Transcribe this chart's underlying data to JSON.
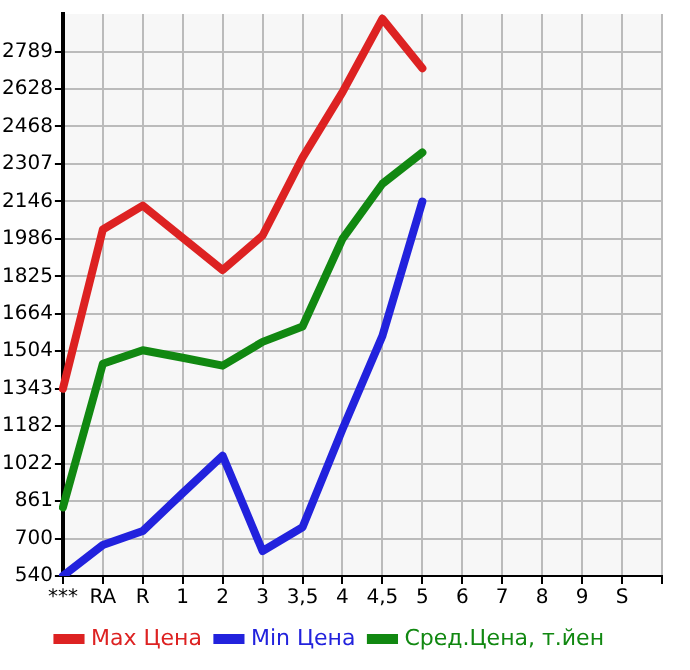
{
  "chart_data": {
    "type": "line",
    "categories": [
      "***",
      "RA",
      "R",
      "1",
      "2",
      "3",
      "3,5",
      "4",
      "4,5",
      "5",
      "6",
      "7",
      "8",
      "9",
      "S",
      null
    ],
    "ylim": [
      540,
      2950
    ],
    "yticks": [
      540,
      700,
      861,
      1022,
      1182,
      1343,
      1504,
      1664,
      1825,
      1986,
      2146,
      2307,
      2468,
      2628,
      2789
    ],
    "grid": true,
    "legend": "bottom",
    "marker": "none",
    "line_style": "solid",
    "series": [
      {
        "name": "Max Цена",
        "color": "#dd2222",
        "values": [
          1343,
          2026,
          2128,
          1990,
          1852,
          2000,
          2334,
          2615,
          2930,
          2717,
          null,
          null,
          null,
          null,
          null,
          null
        ]
      },
      {
        "name": "Min Цена",
        "color": "#2222dd",
        "values": [
          540,
          673,
          733,
          896,
          1056,
          647,
          749,
          1169,
          1570,
          2146,
          null,
          null,
          null,
          null,
          null,
          null
        ]
      },
      {
        "name": "Сред.Цена, т.йен",
        "color": "#118811",
        "values": [
          834,
          1450,
          1508,
          1476,
          1442,
          1544,
          1610,
          1986,
          2222,
          2356,
          null,
          null,
          null,
          null,
          null,
          null
        ]
      }
    ]
  }
}
